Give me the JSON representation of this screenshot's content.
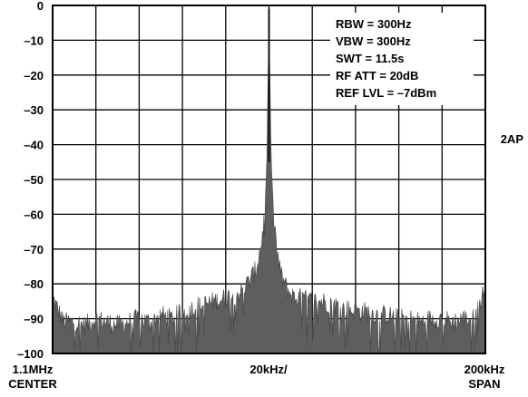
{
  "chart_data": {
    "type": "line",
    "title": "",
    "xlabel": "",
    "ylabel": "",
    "yticks": [
      "0",
      "–10",
      "–20",
      "–30",
      "–40",
      "–50",
      "–60",
      "–70",
      "–80",
      "–90",
      "–100"
    ],
    "ylim": [
      -100,
      0
    ],
    "xlim": [
      -100,
      100
    ],
    "x_unit": "kHz offset from center",
    "xlabels": {
      "left_top": "1.1MHz",
      "left_bottom": "CENTER",
      "center": "20kHz/",
      "right_top": "200kHz",
      "right_bottom": "SPAN"
    },
    "grid": true,
    "side_label": "2AP",
    "annotations": [
      "RBW = 300Hz",
      "VBW = 300Hz",
      "SWT = 11.5s",
      "RF ATT = 20dB",
      "REF LVL = –7dBm"
    ],
    "series": [
      {
        "x": [
          -100,
          -95,
          -90,
          -85,
          -80,
          -75,
          -70,
          -65,
          -60,
          -55,
          -50,
          -45,
          -40,
          -35,
          -30,
          -25,
          -20,
          -15,
          -12,
          -10,
          -8,
          -6,
          -5,
          -4,
          -3,
          -2,
          -1,
          0,
          1,
          2,
          3,
          4,
          5,
          6,
          8,
          10,
          12,
          15,
          20,
          25,
          30,
          35,
          40,
          45,
          50,
          55,
          60,
          65,
          70,
          75,
          80,
          85,
          90,
          95,
          100
        ],
        "values": [
          -84,
          -91,
          -91,
          -92,
          -90,
          -91,
          -92,
          -91,
          -90,
          -91,
          -89,
          -90,
          -88,
          -87,
          -86,
          -85,
          -84,
          -83,
          -82,
          -80,
          -78,
          -76,
          -73,
          -70,
          -66,
          -60,
          -46,
          -2,
          -45,
          -58,
          -66,
          -72,
          -76,
          -78,
          -81,
          -83,
          -84,
          -84,
          -85,
          -85,
          -86,
          -87,
          -88,
          -88,
          -89,
          -89,
          -90,
          -90,
          -91,
          -90,
          -90,
          -91,
          -90,
          -90,
          -81
        ]
      }
    ]
  }
}
